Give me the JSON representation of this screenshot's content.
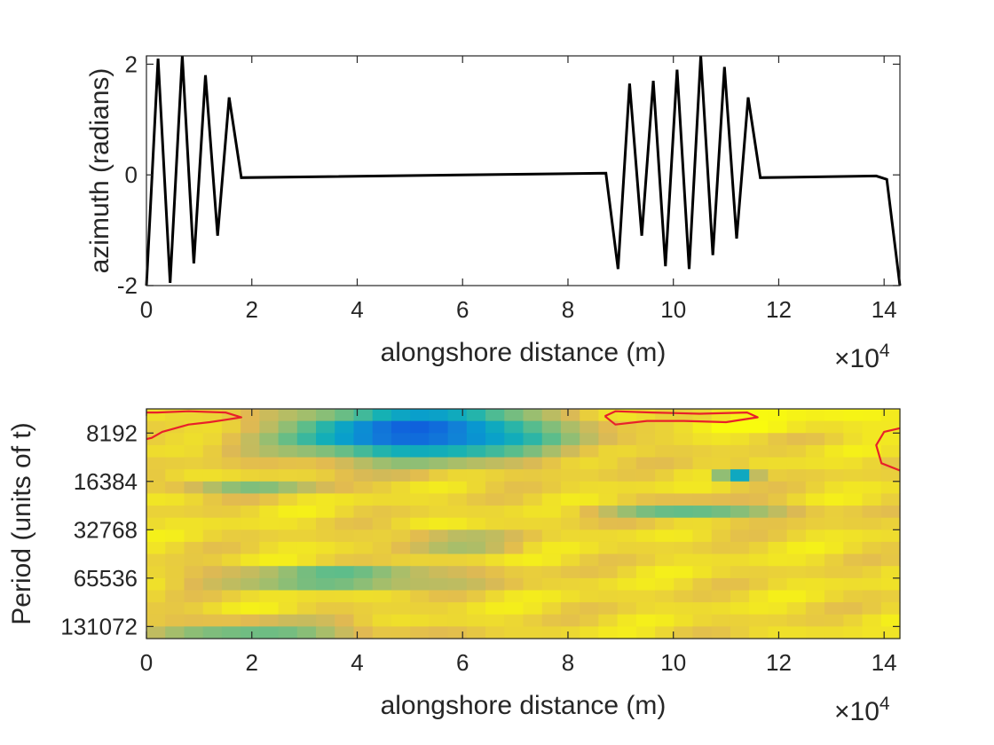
{
  "chart_data": [
    {
      "type": "line",
      "xlabel": "alongshore distance (m)",
      "ylabel": "azimuth (radians)",
      "x_multiplier_label": "×10",
      "x_multiplier_exponent": "4",
      "xlim": [
        0,
        14.3
      ],
      "ylim": [
        -2,
        2.15
      ],
      "xticks": [
        "0",
        "2",
        "4",
        "6",
        "8",
        "10",
        "12",
        "14"
      ],
      "yticks": [
        "-2",
        "0",
        "2"
      ],
      "line_color": "#000000",
      "series": [
        {
          "x": [
            0.0,
            0.22,
            0.45,
            0.68,
            0.9,
            1.12,
            1.35,
            1.57,
            1.8,
            8.72,
            8.95,
            9.17,
            9.4,
            9.62,
            9.85,
            10.07,
            10.3,
            10.52,
            10.75,
            10.97,
            11.2,
            11.42,
            11.65,
            13.85,
            14.05,
            14.3
          ],
          "y": [
            -2.0,
            2.1,
            -1.95,
            2.15,
            -1.6,
            1.8,
            -1.1,
            1.4,
            -0.05,
            0.03,
            -1.7,
            1.65,
            -1.1,
            1.7,
            -1.65,
            1.9,
            -1.7,
            2.15,
            -1.45,
            1.95,
            -1.15,
            1.4,
            -0.05,
            -0.02,
            -0.08,
            -2.0
          ]
        }
      ]
    },
    {
      "type": "heatmap",
      "xlabel": "alongshore distance (m)",
      "ylabel": "Period (units of t)",
      "x_multiplier_label": "×10",
      "x_multiplier_exponent": "4",
      "xlim": [
        0,
        14.3
      ],
      "xticks": [
        "0",
        "2",
        "4",
        "6",
        "8",
        "10",
        "12",
        "14"
      ],
      "yticks": [
        "8192",
        "16384",
        "32768",
        "65536",
        "131072"
      ],
      "colormap": "parula",
      "contour_color": "#e8202a",
      "n_columns": 40,
      "n_period_rows": 19,
      "features": [
        {
          "name": "low-power blob",
          "x_center": 5.2,
          "row_center": 1.9,
          "x_width": 1.7,
          "row_width": 1.5,
          "depth": 0.82
        },
        {
          "name": "low-power band",
          "x_center": 3.7,
          "row_center": 14.0,
          "x_width": 1.6,
          "row_width": 0.5,
          "depth": 0.42
        },
        {
          "name": "low-power spot",
          "x_center": 11.2,
          "row_center": 5.4,
          "x_width": 0.25,
          "row_width": 0.4,
          "depth": 0.55
        },
        {
          "name": "low-power band",
          "x_center": 10.5,
          "row_center": 8.5,
          "x_width": 1.2,
          "row_width": 0.5,
          "depth": 0.3
        },
        {
          "name": "low-power band",
          "x_center": 5.8,
          "row_center": 11.0,
          "x_width": 0.8,
          "row_width": 0.4,
          "depth": 0.3
        },
        {
          "name": "low-power band",
          "x_center": 2.0,
          "row_center": 18.3,
          "x_width": 1.6,
          "row_width": 0.5,
          "depth": 0.28
        },
        {
          "name": "low-power band",
          "x_center": 1.9,
          "row_center": 6.5,
          "x_width": 1.0,
          "row_width": 0.4,
          "depth": 0.22
        }
      ],
      "contours": [
        {
          "x": [
            0.0,
            0.1,
            0.3,
            0.8,
            1.2,
            1.5,
            1.8,
            1.5,
            0.8,
            0.2,
            0.0
          ],
          "row": [
            2.5,
            2.4,
            1.9,
            1.3,
            1.1,
            0.9,
            0.7,
            0.3,
            0.2,
            0.3,
            0.3
          ]
        },
        {
          "x": [
            8.7,
            8.9,
            9.5,
            10.2,
            11.0,
            11.6,
            11.4,
            10.5,
            9.6,
            8.9,
            8.7
          ],
          "row": [
            0.6,
            1.3,
            1.0,
            1.0,
            1.1,
            0.7,
            0.3,
            0.4,
            0.3,
            0.2,
            0.6
          ]
        },
        {
          "x": [
            14.3,
            14.0,
            13.85,
            13.95,
            14.3
          ],
          "row": [
            1.6,
            1.9,
            3.0,
            4.5,
            5.1
          ]
        }
      ]
    }
  ]
}
